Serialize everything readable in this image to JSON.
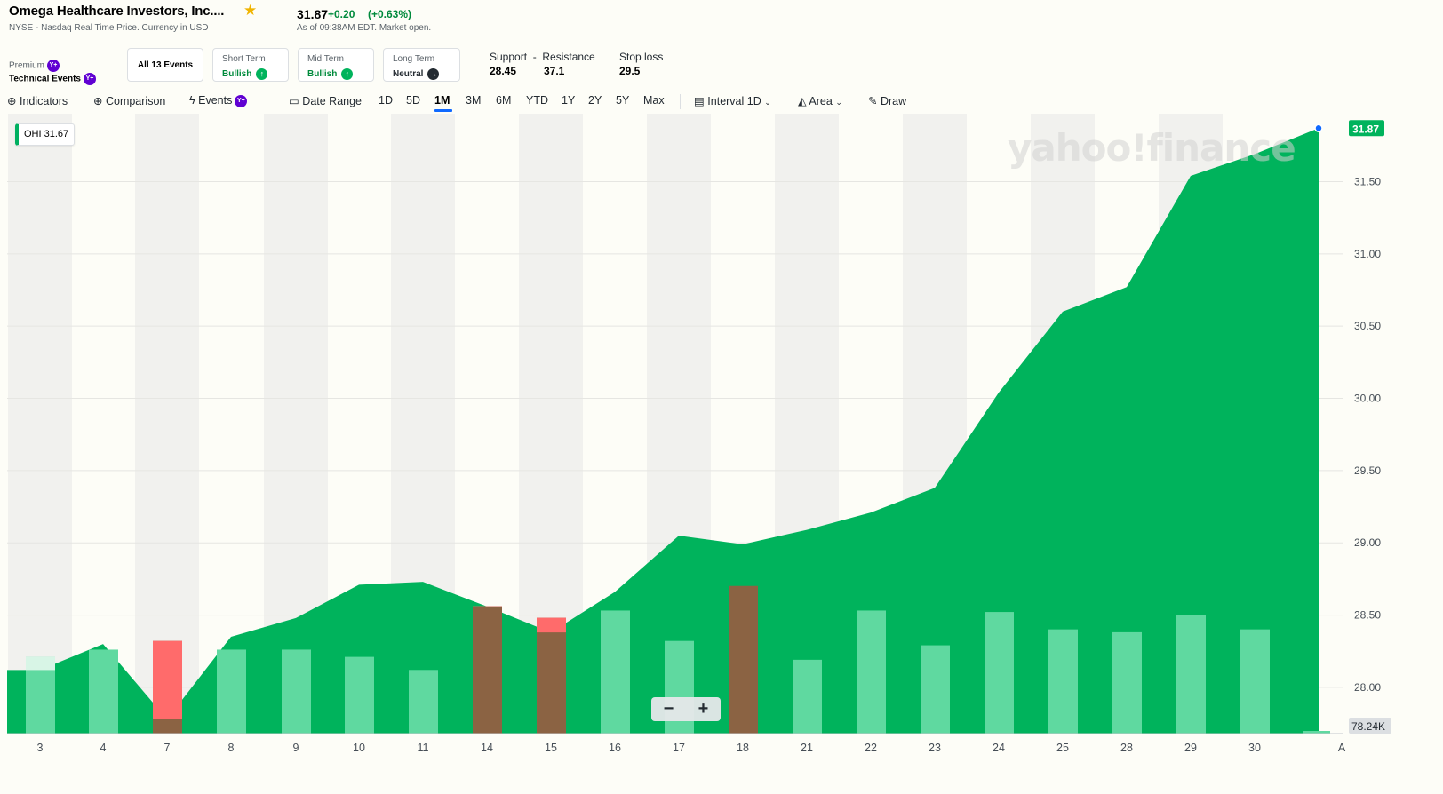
{
  "header": {
    "company": "Omega Healthcare Investors, Inc....",
    "star_icon": "star-icon",
    "exchange_info": "NYSE - Nasdaq Real Time Price. Currency in USD",
    "price": "31.87",
    "change": "+0.20",
    "change_pct": "(+0.63%)",
    "as_of": "As of 09:38AM EDT. Market open."
  },
  "events": {
    "premium_label": "Premium",
    "tech_events_label": "Technical Events",
    "badge": "Y+",
    "all_events": "All 13 Events",
    "short_term": {
      "label": "Short Term",
      "value": "Bullish"
    },
    "mid_term": {
      "label": "Mid Term",
      "value": "Bullish"
    },
    "long_term": {
      "label": "Long Term",
      "value": "Neutral"
    },
    "support_resistance_label": "Support  -  Resistance",
    "support": "28.45",
    "resistance": "37.1",
    "stop_loss_label": "Stop loss",
    "stop_loss": "29.5"
  },
  "toolbar": {
    "indicators": "Indicators",
    "comparison": "Comparison",
    "events": "Events",
    "date_range": "Date Range",
    "ranges": [
      "1D",
      "5D",
      "1M",
      "3M",
      "6M",
      "YTD",
      "1Y",
      "2Y",
      "5Y",
      "Max"
    ],
    "active_range": "1M",
    "interval": "Interval",
    "interval_value": "1D",
    "chart_type": "Area",
    "draw": "Draw"
  },
  "overlay": {
    "watermark": "yahoo!finance",
    "symbol_tag": "OHI 31.67",
    "last_price_tag": "31.87",
    "volume_tag": "78.24K",
    "zoom_out": "−",
    "zoom_in": "+"
  },
  "colors": {
    "area": "#00b35c",
    "vol_up": "#5fd9a0",
    "vol_down": "#ff6b6b",
    "vol_up_light": "#d8f5e6",
    "vol_down_dark": "#8b6343",
    "accent": "#0f69ff"
  },
  "chart_data": {
    "type": "area",
    "x": [
      "3",
      "4",
      "7",
      "8",
      "9",
      "10",
      "11",
      "14",
      "15",
      "16",
      "17",
      "18",
      "21",
      "22",
      "23",
      "24",
      "25",
      "28",
      "29",
      "30",
      "A"
    ],
    "series": [
      {
        "name": "OHI",
        "values": [
          28.12,
          28.3,
          27.78,
          28.35,
          28.48,
          28.71,
          28.73,
          28.56,
          28.38,
          28.66,
          29.05,
          28.99,
          29.09,
          29.21,
          29.38,
          30.04,
          30.6,
          30.77,
          31.54,
          31.69,
          31.87
        ]
      }
    ],
    "volume_labels": [
      "3",
      "4",
      "7",
      "8",
      "9",
      "10",
      "11",
      "14",
      "15",
      "16",
      "17",
      "18",
      "21",
      "22",
      "23",
      "24",
      "25",
      "28",
      "29",
      "30"
    ],
    "volume_relative": [
      0.53,
      0.58,
      0.64,
      0.58,
      0.58,
      0.53,
      0.44,
      0.88,
      0.8,
      0.85,
      0.64,
      1.02,
      0.51,
      0.85,
      0.61,
      0.84,
      0.72,
      0.7,
      0.82,
      0.72
    ],
    "volume_direction": [
      "up",
      "up",
      "down",
      "up",
      "up",
      "up",
      "up",
      "down",
      "down",
      "up",
      "up",
      "down",
      "up",
      "up",
      "up",
      "up",
      "up",
      "up",
      "up",
      "up"
    ],
    "y_ticks": [
      "31.50",
      "31.00",
      "30.50",
      "30.00",
      "29.50",
      "29.00",
      "28.50",
      "28.00"
    ],
    "ylim": [
      27.68,
      31.97
    ],
    "grid": true,
    "title": "",
    "xlabel": "",
    "ylabel": ""
  }
}
